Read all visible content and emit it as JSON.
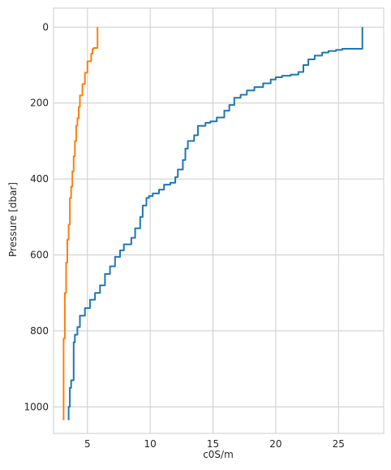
{
  "chart_data": {
    "type": "line",
    "xlabel": "c0S/m",
    "ylabel": "Pressure [dbar]",
    "xlim": [
      2.3,
      28.6
    ],
    "ylim": [
      1070,
      -50
    ],
    "y_inverted": true,
    "grid": true,
    "x_ticks": [
      5,
      10,
      15,
      20,
      25
    ],
    "y_ticks": [
      0,
      200,
      400,
      600,
      800,
      1000
    ],
    "x_tick_labels": [
      "5",
      "10",
      "15",
      "20",
      "25"
    ],
    "y_tick_labels": [
      "0",
      "200",
      "400",
      "600",
      "800",
      "1000"
    ],
    "colors": {
      "series_0": "#1f77b4",
      "series_1": "#ff7f0e",
      "grid": "#cccccc",
      "frame": "#cccccc"
    },
    "series": [
      {
        "color": "#1f77b4",
        "points": [
          [
            26.9,
            0
          ],
          [
            26.9,
            57
          ],
          [
            25.3,
            60
          ],
          [
            24.8,
            63
          ],
          [
            24.2,
            67
          ],
          [
            23.7,
            75
          ],
          [
            23.1,
            85
          ],
          [
            22.6,
            100
          ],
          [
            22.2,
            118
          ],
          [
            21.8,
            125
          ],
          [
            21.2,
            128
          ],
          [
            20.5,
            132
          ],
          [
            20.0,
            138
          ],
          [
            19.6,
            148
          ],
          [
            19.0,
            158
          ],
          [
            18.3,
            167
          ],
          [
            17.7,
            178
          ],
          [
            17.2,
            186
          ],
          [
            16.7,
            205
          ],
          [
            16.3,
            220
          ],
          [
            15.9,
            238
          ],
          [
            15.3,
            248
          ],
          [
            14.8,
            252
          ],
          [
            14.4,
            260
          ],
          [
            13.8,
            285
          ],
          [
            13.5,
            300
          ],
          [
            13.0,
            320
          ],
          [
            12.8,
            350
          ],
          [
            12.6,
            375
          ],
          [
            12.2,
            395
          ],
          [
            12.0,
            410
          ],
          [
            11.6,
            415
          ],
          [
            11.1,
            428
          ],
          [
            10.7,
            438
          ],
          [
            10.2,
            445
          ],
          [
            9.9,
            450
          ],
          [
            9.7,
            470
          ],
          [
            9.4,
            500
          ],
          [
            9.2,
            530
          ],
          [
            8.8,
            555
          ],
          [
            8.5,
            572
          ],
          [
            7.9,
            588
          ],
          [
            7.6,
            605
          ],
          [
            7.2,
            630
          ],
          [
            6.8,
            650
          ],
          [
            6.4,
            680
          ],
          [
            6.0,
            700
          ],
          [
            5.6,
            718
          ],
          [
            5.2,
            740
          ],
          [
            4.8,
            760
          ],
          [
            4.4,
            790
          ],
          [
            4.2,
            810
          ],
          [
            4.0,
            830
          ],
          [
            3.9,
            850
          ],
          [
            3.9,
            900
          ],
          [
            3.9,
            930
          ],
          [
            3.7,
            950
          ],
          [
            3.6,
            980
          ],
          [
            3.6,
            1000
          ],
          [
            3.5,
            1035
          ]
        ]
      },
      {
        "color": "#ff7f0e",
        "points": [
          [
            5.8,
            0
          ],
          [
            5.8,
            55
          ],
          [
            5.5,
            58
          ],
          [
            5.4,
            70
          ],
          [
            5.3,
            90
          ],
          [
            5.0,
            120
          ],
          [
            4.8,
            150
          ],
          [
            4.6,
            180
          ],
          [
            4.4,
            210
          ],
          [
            4.3,
            240
          ],
          [
            4.2,
            260
          ],
          [
            4.1,
            300
          ],
          [
            4.0,
            340
          ],
          [
            3.9,
            380
          ],
          [
            3.8,
            420
          ],
          [
            3.7,
            450
          ],
          [
            3.6,
            480
          ],
          [
            3.6,
            520
          ],
          [
            3.5,
            560
          ],
          [
            3.4,
            620
          ],
          [
            3.3,
            700
          ],
          [
            3.2,
            760
          ],
          [
            3.2,
            820
          ],
          [
            3.1,
            900
          ],
          [
            3.1,
            960
          ],
          [
            3.1,
            1035
          ]
        ]
      }
    ]
  }
}
